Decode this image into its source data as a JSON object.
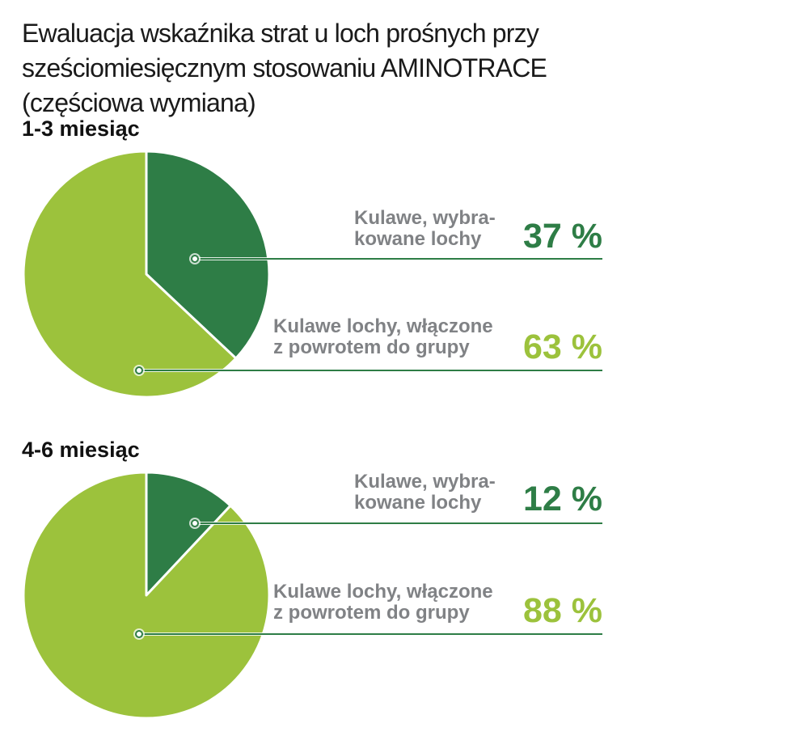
{
  "title": "Ewaluacja wskaźnika strat u loch prośnych przy\nsześciomiesięcznym stosowaniu AMINOTRACE\n(częściowa wymiana)",
  "colors": {
    "dark_green": "#2e7d46",
    "light_green": "#9cc23c",
    "label_gray": "#808285",
    "leader_line": "#2e7d46",
    "title_black": "#1a1a1a",
    "background": "#ffffff"
  },
  "chart_data": [
    {
      "type": "pie",
      "title": "1-3 miesiąc",
      "start_angle_deg": 0,
      "direction": "clockwise",
      "slices": [
        {
          "label": "Kulawe, wybra-\nkowane lochy",
          "value": 37,
          "display": "37 %",
          "color": "#2e7d46"
        },
        {
          "label": "Kulawe lochy, włączone\nz powrotem do grupy",
          "value": 63,
          "display": "63 %",
          "color": "#9cc23c"
        }
      ]
    },
    {
      "type": "pie",
      "title": "4-6 miesiąc",
      "start_angle_deg": 0,
      "direction": "clockwise",
      "slices": [
        {
          "label": "Kulawe, wybra-\nkowane lochy",
          "value": 12,
          "display": "12 %",
          "color": "#2e7d46"
        },
        {
          "label": "Kulawe lochy, włączone\nz powrotem do grupy",
          "value": 88,
          "display": "88 %",
          "color": "#9cc23c"
        }
      ]
    }
  ]
}
